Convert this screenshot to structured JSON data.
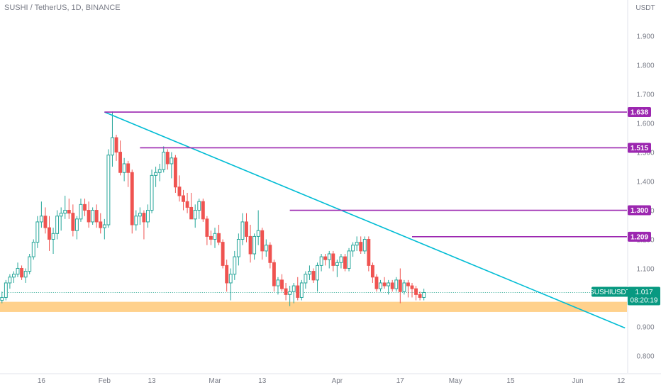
{
  "header": {
    "symbol_line": "SUSHI / TetherUS, 1D, BINANCE"
  },
  "chart_data": {
    "type": "candlestick",
    "currency_label": "USDT",
    "y_ticks": [
      "1.900",
      "1.800",
      "1.700",
      "1.600",
      "1.500",
      "1.400",
      "1.300",
      "1.200",
      "1.100",
      "1.000",
      "0.900",
      "0.800"
    ],
    "y_range": [
      0.74,
      1.97
    ],
    "x_tick_labels": [
      {
        "label": "16",
        "day": 0
      },
      {
        "label": "Feb",
        "day": 16
      },
      {
        "label": "13",
        "day": 28
      },
      {
        "label": "Mar",
        "day": 44
      },
      {
        "label": "13",
        "day": 56
      },
      {
        "label": "Apr",
        "day": 75
      },
      {
        "label": "17",
        "day": 91
      },
      {
        "label": "May",
        "day": 105
      },
      {
        "label": "15",
        "day": 119
      },
      {
        "label": "Jun",
        "day": 136
      },
      {
        "label": "12",
        "day": 147
      }
    ],
    "x_range_days": [
      -10.5,
      148.5
    ],
    "candles_start_day": -10,
    "candles": [
      [
        0.99,
        1.02,
        0.98,
        1.0
      ],
      [
        1.0,
        1.06,
        0.99,
        1.05
      ],
      [
        1.05,
        1.08,
        1.03,
        1.07
      ],
      [
        1.07,
        1.09,
        1.05,
        1.08
      ],
      [
        1.08,
        1.12,
        1.07,
        1.1
      ],
      [
        1.1,
        1.11,
        1.06,
        1.07
      ],
      [
        1.07,
        1.1,
        1.05,
        1.09
      ],
      [
        1.09,
        1.15,
        1.08,
        1.14
      ],
      [
        1.14,
        1.2,
        1.13,
        1.19
      ],
      [
        1.19,
        1.28,
        1.17,
        1.26
      ],
      [
        1.26,
        1.33,
        1.24,
        1.28
      ],
      [
        1.28,
        1.31,
        1.22,
        1.24
      ],
      [
        1.24,
        1.28,
        1.16,
        1.2
      ],
      [
        1.2,
        1.24,
        1.15,
        1.22
      ],
      [
        1.22,
        1.3,
        1.2,
        1.28
      ],
      [
        1.28,
        1.31,
        1.23,
        1.29
      ],
      [
        1.29,
        1.35,
        1.27,
        1.3
      ],
      [
        1.3,
        1.34,
        1.27,
        1.29
      ],
      [
        1.29,
        1.32,
        1.21,
        1.23
      ],
      [
        1.23,
        1.28,
        1.2,
        1.27
      ],
      [
        1.27,
        1.34,
        1.26,
        1.32
      ],
      [
        1.32,
        1.34,
        1.28,
        1.3
      ],
      [
        1.3,
        1.33,
        1.24,
        1.26
      ],
      [
        1.26,
        1.31,
        1.25,
        1.3
      ],
      [
        1.3,
        1.32,
        1.24,
        1.26
      ],
      [
        1.26,
        1.29,
        1.22,
        1.24
      ],
      [
        1.24,
        1.27,
        1.2,
        1.25
      ],
      [
        1.25,
        1.51,
        1.24,
        1.49
      ],
      [
        1.49,
        1.64,
        1.45,
        1.55
      ],
      [
        1.55,
        1.56,
        1.47,
        1.5
      ],
      [
        1.5,
        1.54,
        1.42,
        1.43
      ],
      [
        1.43,
        1.48,
        1.4,
        1.46
      ],
      [
        1.46,
        1.47,
        1.38,
        1.43
      ],
      [
        1.43,
        1.44,
        1.22,
        1.25
      ],
      [
        1.25,
        1.3,
        1.23,
        1.28
      ],
      [
        1.28,
        1.31,
        1.25,
        1.29
      ],
      [
        1.29,
        1.3,
        1.2,
        1.26
      ],
      [
        1.26,
        1.32,
        1.24,
        1.3
      ],
      [
        1.3,
        1.44,
        1.29,
        1.42
      ],
      [
        1.42,
        1.45,
        1.38,
        1.43
      ],
      [
        1.43,
        1.46,
        1.4,
        1.44
      ],
      [
        1.44,
        1.52,
        1.43,
        1.5
      ],
      [
        1.5,
        1.51,
        1.44,
        1.46
      ],
      [
        1.46,
        1.5,
        1.41,
        1.48
      ],
      [
        1.48,
        1.49,
        1.36,
        1.38
      ],
      [
        1.38,
        1.42,
        1.33,
        1.35
      ],
      [
        1.35,
        1.37,
        1.3,
        1.33
      ],
      [
        1.33,
        1.36,
        1.29,
        1.31
      ],
      [
        1.31,
        1.36,
        1.28,
        1.27
      ],
      [
        1.27,
        1.32,
        1.24,
        1.3
      ],
      [
        1.3,
        1.34,
        1.27,
        1.33
      ],
      [
        1.33,
        1.34,
        1.26,
        1.27
      ],
      [
        1.27,
        1.28,
        1.18,
        1.21
      ],
      [
        1.21,
        1.23,
        1.18,
        1.2
      ],
      [
        1.2,
        1.24,
        1.17,
        1.22
      ],
      [
        1.22,
        1.25,
        1.18,
        1.19
      ],
      [
        1.19,
        1.2,
        1.1,
        1.11
      ],
      [
        1.11,
        1.13,
        1.02,
        1.05
      ],
      [
        1.05,
        1.1,
        0.99,
        1.08
      ],
      [
        1.08,
        1.16,
        1.06,
        1.14
      ],
      [
        1.14,
        1.22,
        1.11,
        1.2
      ],
      [
        1.2,
        1.29,
        1.18,
        1.26
      ],
      [
        1.26,
        1.29,
        1.19,
        1.21
      ],
      [
        1.21,
        1.25,
        1.12,
        1.15
      ],
      [
        1.15,
        1.22,
        1.13,
        1.21
      ],
      [
        1.21,
        1.3,
        1.18,
        1.23
      ],
      [
        1.23,
        1.24,
        1.13,
        1.16
      ],
      [
        1.16,
        1.2,
        1.14,
        1.18
      ],
      [
        1.18,
        1.19,
        1.1,
        1.12
      ],
      [
        1.12,
        1.13,
        1.02,
        1.04
      ],
      [
        1.04,
        1.07,
        1.01,
        1.06
      ],
      [
        1.06,
        1.08,
        1.02,
        1.03
      ],
      [
        1.03,
        1.05,
        0.99,
        1.01
      ],
      [
        1.01,
        1.04,
        0.97,
        1.02
      ],
      [
        1.02,
        1.05,
        0.98,
        1.04
      ],
      [
        1.04,
        1.07,
        0.99,
        1.0
      ],
      [
        1.0,
        1.06,
        0.99,
        1.05
      ],
      [
        1.05,
        1.09,
        1.03,
        1.08
      ],
      [
        1.08,
        1.11,
        1.06,
        1.09
      ],
      [
        1.09,
        1.1,
        1.05,
        1.06
      ],
      [
        1.06,
        1.12,
        1.02,
        1.11
      ],
      [
        1.11,
        1.15,
        1.09,
        1.14
      ],
      [
        1.14,
        1.15,
        1.11,
        1.13
      ],
      [
        1.13,
        1.16,
        1.1,
        1.15
      ],
      [
        1.15,
        1.16,
        1.09,
        1.11
      ],
      [
        1.11,
        1.13,
        1.07,
        1.12
      ],
      [
        1.12,
        1.15,
        1.1,
        1.14
      ],
      [
        1.14,
        1.15,
        1.09,
        1.1
      ],
      [
        1.1,
        1.17,
        1.09,
        1.16
      ],
      [
        1.16,
        1.19,
        1.14,
        1.18
      ],
      [
        1.18,
        1.21,
        1.16,
        1.19
      ],
      [
        1.19,
        1.21,
        1.15,
        1.16
      ],
      [
        1.16,
        1.21,
        1.15,
        1.2
      ],
      [
        1.2,
        1.21,
        1.09,
        1.11
      ],
      [
        1.11,
        1.12,
        1.05,
        1.07
      ],
      [
        1.07,
        1.08,
        1.02,
        1.03
      ],
      [
        1.03,
        1.06,
        1.02,
        1.05
      ],
      [
        1.05,
        1.07,
        1.03,
        1.04
      ],
      [
        1.04,
        1.06,
        1.01,
        1.05
      ],
      [
        1.05,
        1.06,
        1.02,
        1.03
      ],
      [
        1.03,
        1.07,
        1.02,
        1.06
      ],
      [
        1.06,
        1.1,
        0.98,
        1.02
      ],
      [
        1.02,
        1.06,
        1.01,
        1.05
      ],
      [
        1.05,
        1.06,
        1.0,
        1.04
      ],
      [
        1.04,
        1.05,
        1.0,
        1.03
      ],
      [
        1.03,
        1.04,
        0.99,
        1.01
      ],
      [
        1.01,
        1.02,
        0.99,
        1.0
      ],
      [
        1.0,
        1.03,
        0.99,
        1.017
      ]
    ],
    "colors": {
      "up": "#26a69a",
      "down": "#ef5350",
      "levels": "#9c27b0",
      "trendline": "#00bcd4",
      "support_zone": "#ffcc80",
      "price_tag": "#089981"
    },
    "horizontal_levels": [
      {
        "label": "1.638",
        "value": 1.638,
        "from_day": 16
      },
      {
        "label": "1.515",
        "value": 1.515,
        "from_day": 25
      },
      {
        "label": "1.300",
        "value": 1.3,
        "from_day": 63
      },
      {
        "label": "1.209",
        "value": 1.209,
        "from_day": 94
      }
    ],
    "trendline": {
      "from_day": 16,
      "from_value": 1.638,
      "to_day": 148,
      "to_value": 0.895
    },
    "support_zone": {
      "from_value": 0.95,
      "to_value": 0.985
    },
    "last_price": {
      "symbol": "SUSHIUSDT",
      "value": "1.017",
      "countdown": "08:20:19",
      "numeric": 1.017
    }
  }
}
